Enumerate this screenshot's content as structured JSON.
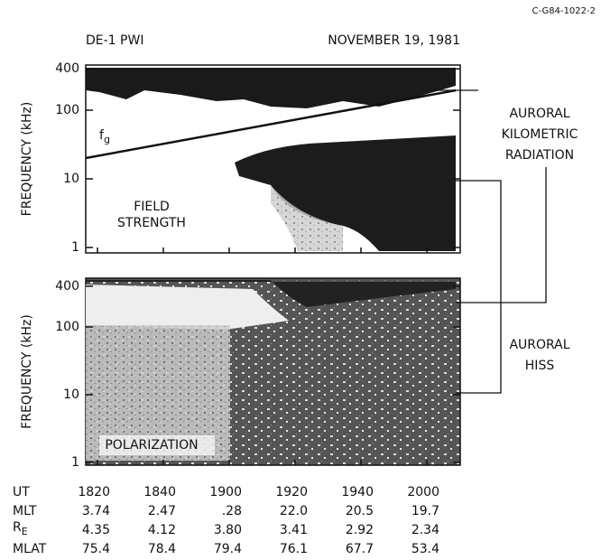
{
  "figure_id": "C-G84-1022-2",
  "header": {
    "left": "DE-1 PWI",
    "right": "NOVEMBER 19, 1981"
  },
  "panels": [
    {
      "y_label": "FREQUENCY (kHz)",
      "yticks": [
        400,
        100,
        10,
        1
      ],
      "label": [
        "FIELD",
        "STRENGTH"
      ],
      "curve_label": {
        "text": "f",
        "subscript": "g"
      }
    },
    {
      "y_label": "FREQUENCY (kHz)",
      "yticks": [
        400,
        100,
        10,
        1
      ],
      "label": [
        "POLARIZATION"
      ]
    }
  ],
  "annotations": [
    {
      "lines": [
        "AURORAL",
        "KILOMETRIC",
        "RADIATION"
      ]
    },
    {
      "lines": [
        "AURORAL",
        "HISS"
      ]
    }
  ],
  "table": {
    "rows": [
      {
        "label": "UT",
        "values": [
          "1820",
          "1840",
          "1900",
          "1920",
          "1940",
          "2000"
        ]
      },
      {
        "label": "MLT",
        "values": [
          "3.74",
          "2.47",
          ".28",
          "22.0",
          "20.5",
          "19.7"
        ]
      },
      {
        "label": {
          "text": "R",
          "subscript": "E"
        },
        "values": [
          "4.35",
          "4.12",
          "3.80",
          "3.41",
          "2.92",
          "2.34"
        ]
      },
      {
        "label": "MLAT",
        "values": [
          "75.4",
          "78.4",
          "79.4",
          "76.1",
          "67.7",
          "53.4"
        ]
      }
    ]
  }
}
